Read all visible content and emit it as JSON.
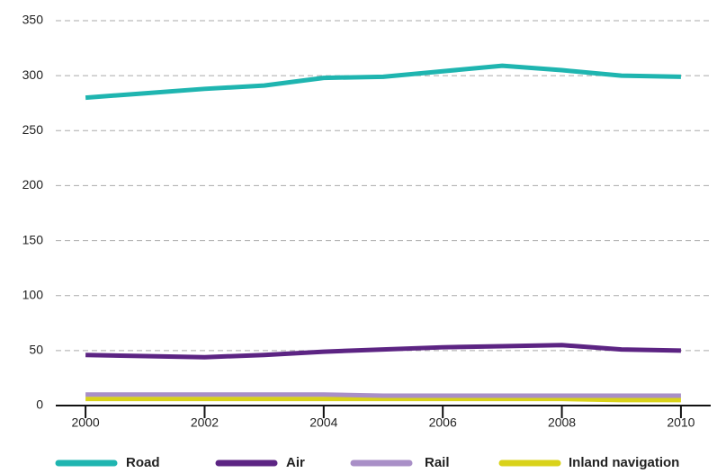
{
  "chart_data": {
    "type": "line",
    "x": [
      2000,
      2001,
      2002,
      2003,
      2004,
      2005,
      2006,
      2007,
      2008,
      2009,
      2010
    ],
    "xlim": [
      1999.5,
      2010.5
    ],
    "xticks": [
      2000,
      2002,
      2004,
      2006,
      2008,
      2010
    ],
    "ylim": [
      0,
      350
    ],
    "yticks": [
      0,
      50,
      100,
      150,
      200,
      250,
      300,
      350
    ],
    "grid": true,
    "legend": "bottom",
    "series": [
      {
        "name": "Road",
        "color": "#1fb5b0",
        "values": [
          280,
          284,
          288,
          291,
          298,
          299,
          304,
          309,
          305,
          300,
          299
        ]
      },
      {
        "name": "Air",
        "color": "#5c2483",
        "values": [
          46,
          45,
          44,
          46,
          49,
          51,
          53,
          54,
          55,
          51,
          50
        ]
      },
      {
        "name": "Rail",
        "color": "#a98fc7",
        "values": [
          10,
          10,
          10,
          10,
          10,
          9,
          9,
          9,
          9,
          9,
          9
        ]
      },
      {
        "name": "Inland navigation",
        "color": "#d9d21a",
        "values": [
          6,
          6,
          6,
          6,
          6,
          6,
          6,
          6,
          6,
          5,
          5
        ]
      }
    ]
  }
}
